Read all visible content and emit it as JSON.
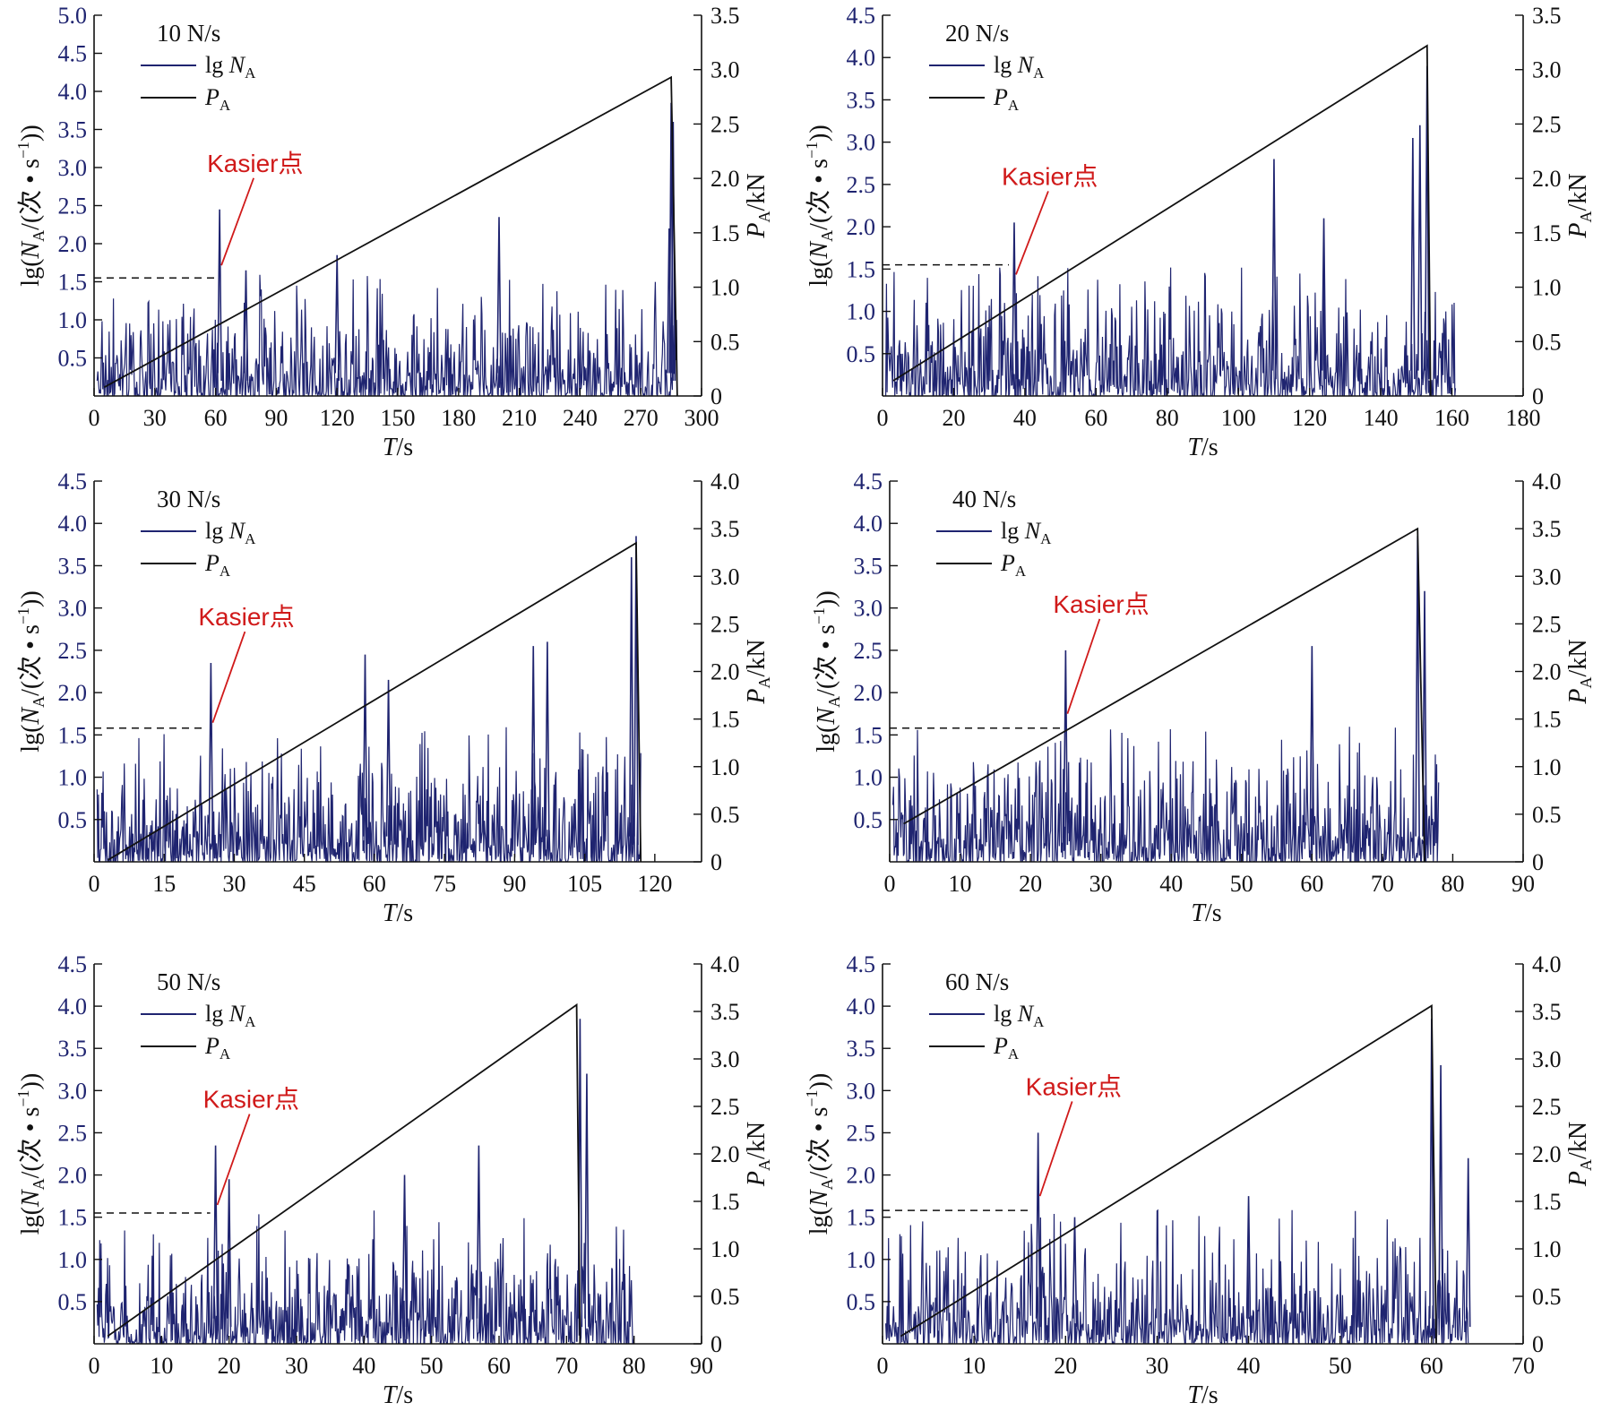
{
  "chart_data": [
    {
      "type": "line",
      "rate_label": "10 N/s",
      "legend": [
        "lg N",
        "P"
      ],
      "legend_subscript": "A",
      "annotation": "Kasier点",
      "xlabel": "T/s",
      "ylabel_left": "lg(NA/(次 • s−1))",
      "ylabel_right": "PA/kN",
      "xticks": [
        0,
        30,
        60,
        90,
        120,
        150,
        180,
        210,
        240,
        270,
        300
      ],
      "yticks_left": [
        0.5,
        1.0,
        1.5,
        2.0,
        2.5,
        3.0,
        3.5,
        4.0,
        4.5,
        5.0
      ],
      "yticks_right": [
        0,
        0.5,
        1.0,
        1.5,
        2.0,
        2.5,
        3.0,
        3.5
      ],
      "xlim": [
        0,
        300
      ],
      "ylim_left": [
        0,
        5.0
      ],
      "ylim_right": [
        0,
        3.5
      ],
      "load_series": [
        [
          5,
          0.08
        ],
        [
          285,
          2.93
        ],
        [
          288,
          0.0
        ]
      ],
      "ae_end": 288,
      "kaiser": {
        "t": 62,
        "lg": 2.45,
        "level": 1.55
      },
      "ae_peaks": [
        [
          62,
          2.45
        ],
        [
          200,
          2.35
        ],
        [
          120,
          1.85
        ],
        [
          75,
          1.65
        ],
        [
          285,
          3.85
        ],
        [
          286,
          3.6
        ],
        [
          284,
          2.2
        ]
      ]
    },
    {
      "type": "line",
      "rate_label": "20 N/s",
      "legend": [
        "lg N",
        "P"
      ],
      "legend_subscript": "A",
      "annotation": "Kasier点",
      "xlabel": "T/s",
      "ylabel_left": "lg(NA/(次 • s−1))",
      "ylabel_right": "PA/kN",
      "xticks": [
        0,
        20,
        40,
        60,
        80,
        100,
        120,
        140,
        160,
        180
      ],
      "yticks_left": [
        0.5,
        1.0,
        1.5,
        2.0,
        2.5,
        3.0,
        3.5,
        4.0,
        4.5
      ],
      "yticks_right": [
        0,
        0.5,
        1.0,
        1.5,
        2.0,
        2.5,
        3.0,
        3.5
      ],
      "xlim": [
        0,
        180
      ],
      "ylim_left": [
        0,
        4.5
      ],
      "ylim_right": [
        0,
        3.5
      ],
      "load_series": [
        [
          3,
          0.14
        ],
        [
          153,
          3.22
        ],
        [
          154,
          0.0
        ]
      ],
      "ae_end": 161,
      "kaiser": {
        "t": 37,
        "lg": 2.05,
        "level": 1.55
      },
      "ae_peaks": [
        [
          37,
          2.05
        ],
        [
          153,
          3.9
        ],
        [
          149,
          3.05
        ],
        [
          151,
          3.2
        ],
        [
          124,
          2.1
        ],
        [
          110,
          2.8
        ]
      ]
    },
    {
      "type": "line",
      "rate_label": "30 N/s",
      "legend": [
        "lg N",
        "P"
      ],
      "legend_subscript": "A",
      "annotation": "Kasier点",
      "xlabel": "T/s",
      "ylabel_left": "lg(NA/(次 • s−1))",
      "ylabel_right": "PA/kN",
      "xticks": [
        0,
        15,
        30,
        45,
        60,
        75,
        90,
        105,
        120
      ],
      "yticks_left": [
        0.5,
        1.0,
        1.5,
        2.0,
        2.5,
        3.0,
        3.5,
        4.0,
        4.5
      ],
      "yticks_right": [
        0,
        0.5,
        1.0,
        1.5,
        2.0,
        2.5,
        3.0,
        3.5,
        4.0
      ],
      "xlim": [
        0,
        130
      ],
      "ylim_left": [
        0,
        4.5
      ],
      "ylim_right": [
        0,
        4.0
      ],
      "load_series": [
        [
          3,
          0.02
        ],
        [
          116,
          3.35
        ],
        [
          117,
          0.0
        ]
      ],
      "ae_end": 117,
      "kaiser": {
        "t": 25,
        "lg": 2.35,
        "level": 1.58
      },
      "ae_peaks": [
        [
          25,
          2.35
        ],
        [
          58,
          2.45
        ],
        [
          63,
          2.15
        ],
        [
          94,
          2.55
        ],
        [
          97,
          2.6
        ],
        [
          116,
          3.85
        ],
        [
          115,
          3.6
        ]
      ]
    },
    {
      "type": "line",
      "rate_label": "40 N/s",
      "legend": [
        "lg N",
        "P"
      ],
      "legend_subscript": "A",
      "annotation": "Kasier点",
      "xlabel": "T/s",
      "ylabel_left": "lg(NA/(次 • s−1))",
      "ylabel_right": "PA/kN",
      "xticks": [
        0,
        10,
        20,
        30,
        40,
        50,
        60,
        70,
        80,
        90
      ],
      "yticks_left": [
        0.5,
        1.0,
        1.5,
        2.0,
        2.5,
        3.0,
        3.5,
        4.0,
        4.5
      ],
      "yticks_right": [
        0,
        0.5,
        1.0,
        1.5,
        2.0,
        2.5,
        3.0,
        3.5,
        4.0
      ],
      "xlim": [
        0,
        90
      ],
      "ylim_left": [
        0,
        4.5
      ],
      "ylim_right": [
        0,
        4.0
      ],
      "load_series": [
        [
          2,
          0.4
        ],
        [
          75,
          3.5
        ],
        [
          76,
          0.0
        ]
      ],
      "ae_end": 78,
      "kaiser": {
        "t": 25,
        "lg": 2.5,
        "level": 1.58
      },
      "ae_peaks": [
        [
          25,
          2.5
        ],
        [
          60,
          2.55
        ],
        [
          75,
          3.85
        ],
        [
          76,
          3.2
        ]
      ]
    },
    {
      "type": "line",
      "rate_label": "50 N/s",
      "legend": [
        "lg N",
        "P"
      ],
      "legend_subscript": "A",
      "annotation": "Kasier点",
      "xlabel": "T/s",
      "ylabel_left": "lg(NA/(次 • s−1))",
      "ylabel_right": "PA/kN",
      "xticks": [
        0,
        10,
        20,
        30,
        40,
        50,
        60,
        70,
        80,
        90
      ],
      "yticks_left": [
        0.5,
        1.0,
        1.5,
        2.0,
        2.5,
        3.0,
        3.5,
        4.0,
        4.5
      ],
      "yticks_right": [
        0,
        0.5,
        1.0,
        1.5,
        2.0,
        2.5,
        3.0,
        3.5,
        4.0
      ],
      "xlim": [
        0,
        90
      ],
      "ylim_left": [
        0,
        4.5
      ],
      "ylim_right": [
        0,
        4.0
      ],
      "load_series": [
        [
          2,
          0.08
        ],
        [
          71.5,
          3.57
        ],
        [
          72,
          0.0
        ]
      ],
      "ae_end": 80,
      "kaiser": {
        "t": 18,
        "lg": 2.35,
        "level": 1.55
      },
      "ae_peaks": [
        [
          18,
          2.35
        ],
        [
          20,
          1.95
        ],
        [
          46,
          2.0
        ],
        [
          57,
          2.35
        ],
        [
          72,
          3.85
        ],
        [
          73,
          3.2
        ]
      ]
    },
    {
      "type": "line",
      "rate_label": "60 N/s",
      "legend": [
        "lg N",
        "P"
      ],
      "legend_subscript": "A",
      "annotation": "Kasier点",
      "xlabel": "T/s",
      "ylabel_left": "lg(NA/(次 • s−1))",
      "ylabel_right": "PA/kN",
      "xticks": [
        0,
        10,
        20,
        30,
        40,
        50,
        60,
        70
      ],
      "yticks_left": [
        0.5,
        1.0,
        1.5,
        2.0,
        2.5,
        3.0,
        3.5,
        4.0,
        4.5
      ],
      "yticks_right": [
        0,
        0.5,
        1.0,
        1.5,
        2.0,
        2.5,
        3.0,
        3.5,
        4.0
      ],
      "xlim": [
        0,
        70
      ],
      "ylim_left": [
        0,
        4.5
      ],
      "ylim_right": [
        0,
        4.0
      ],
      "load_series": [
        [
          2,
          0.08
        ],
        [
          60,
          3.56
        ],
        [
          60.5,
          0.0
        ]
      ],
      "ae_end": 64,
      "kaiser": {
        "t": 17,
        "lg": 2.5,
        "level": 1.58
      },
      "ae_peaks": [
        [
          17,
          2.5
        ],
        [
          21,
          1.5
        ],
        [
          40,
          1.75
        ],
        [
          60,
          3.85
        ],
        [
          61,
          3.3
        ],
        [
          64,
          2.2
        ]
      ]
    }
  ],
  "style": {
    "ae_color": "#1f2470",
    "load_color": "#111111",
    "annotation_color": "#d01a1a",
    "left_tick_color": "#1f2470"
  }
}
